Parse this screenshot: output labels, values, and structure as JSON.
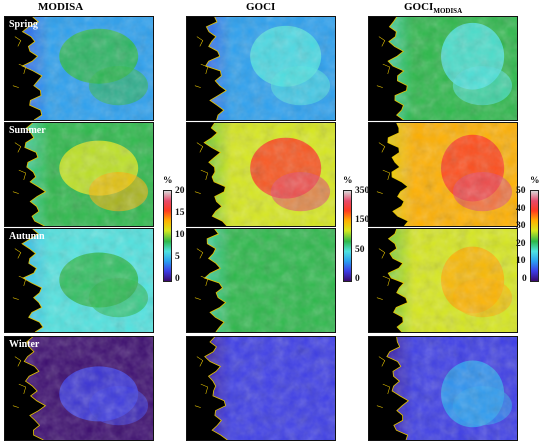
{
  "columns": [
    {
      "title": "MODISA",
      "subscript": ""
    },
    {
      "title": "GOCI",
      "subscript": ""
    },
    {
      "title": "GOCI",
      "subscript": "MODISA"
    }
  ],
  "seasons": [
    "Spring",
    "Summer",
    "Autumn",
    "Winter"
  ],
  "colorbars": [
    {
      "unit": "%",
      "ticks": [
        "20",
        "15",
        "10",
        "5",
        "0"
      ]
    },
    {
      "unit": "%",
      "ticks": [
        "350",
        "150",
        "50",
        "0"
      ]
    },
    {
      "unit": "%",
      "ticks": [
        "50",
        "40",
        "30",
        "20",
        "10",
        "0"
      ]
    }
  ],
  "colormap": [
    "#3a0a6e",
    "#3c3ce6",
    "#2aa0f0",
    "#4fe3e0",
    "#2cb84a",
    "#d7e81e",
    "#ffb000",
    "#ff3b1f",
    "#e64a6a",
    "#d8d8d8"
  ],
  "land_color": "#000000",
  "coastline_color": "#e6c400"
}
